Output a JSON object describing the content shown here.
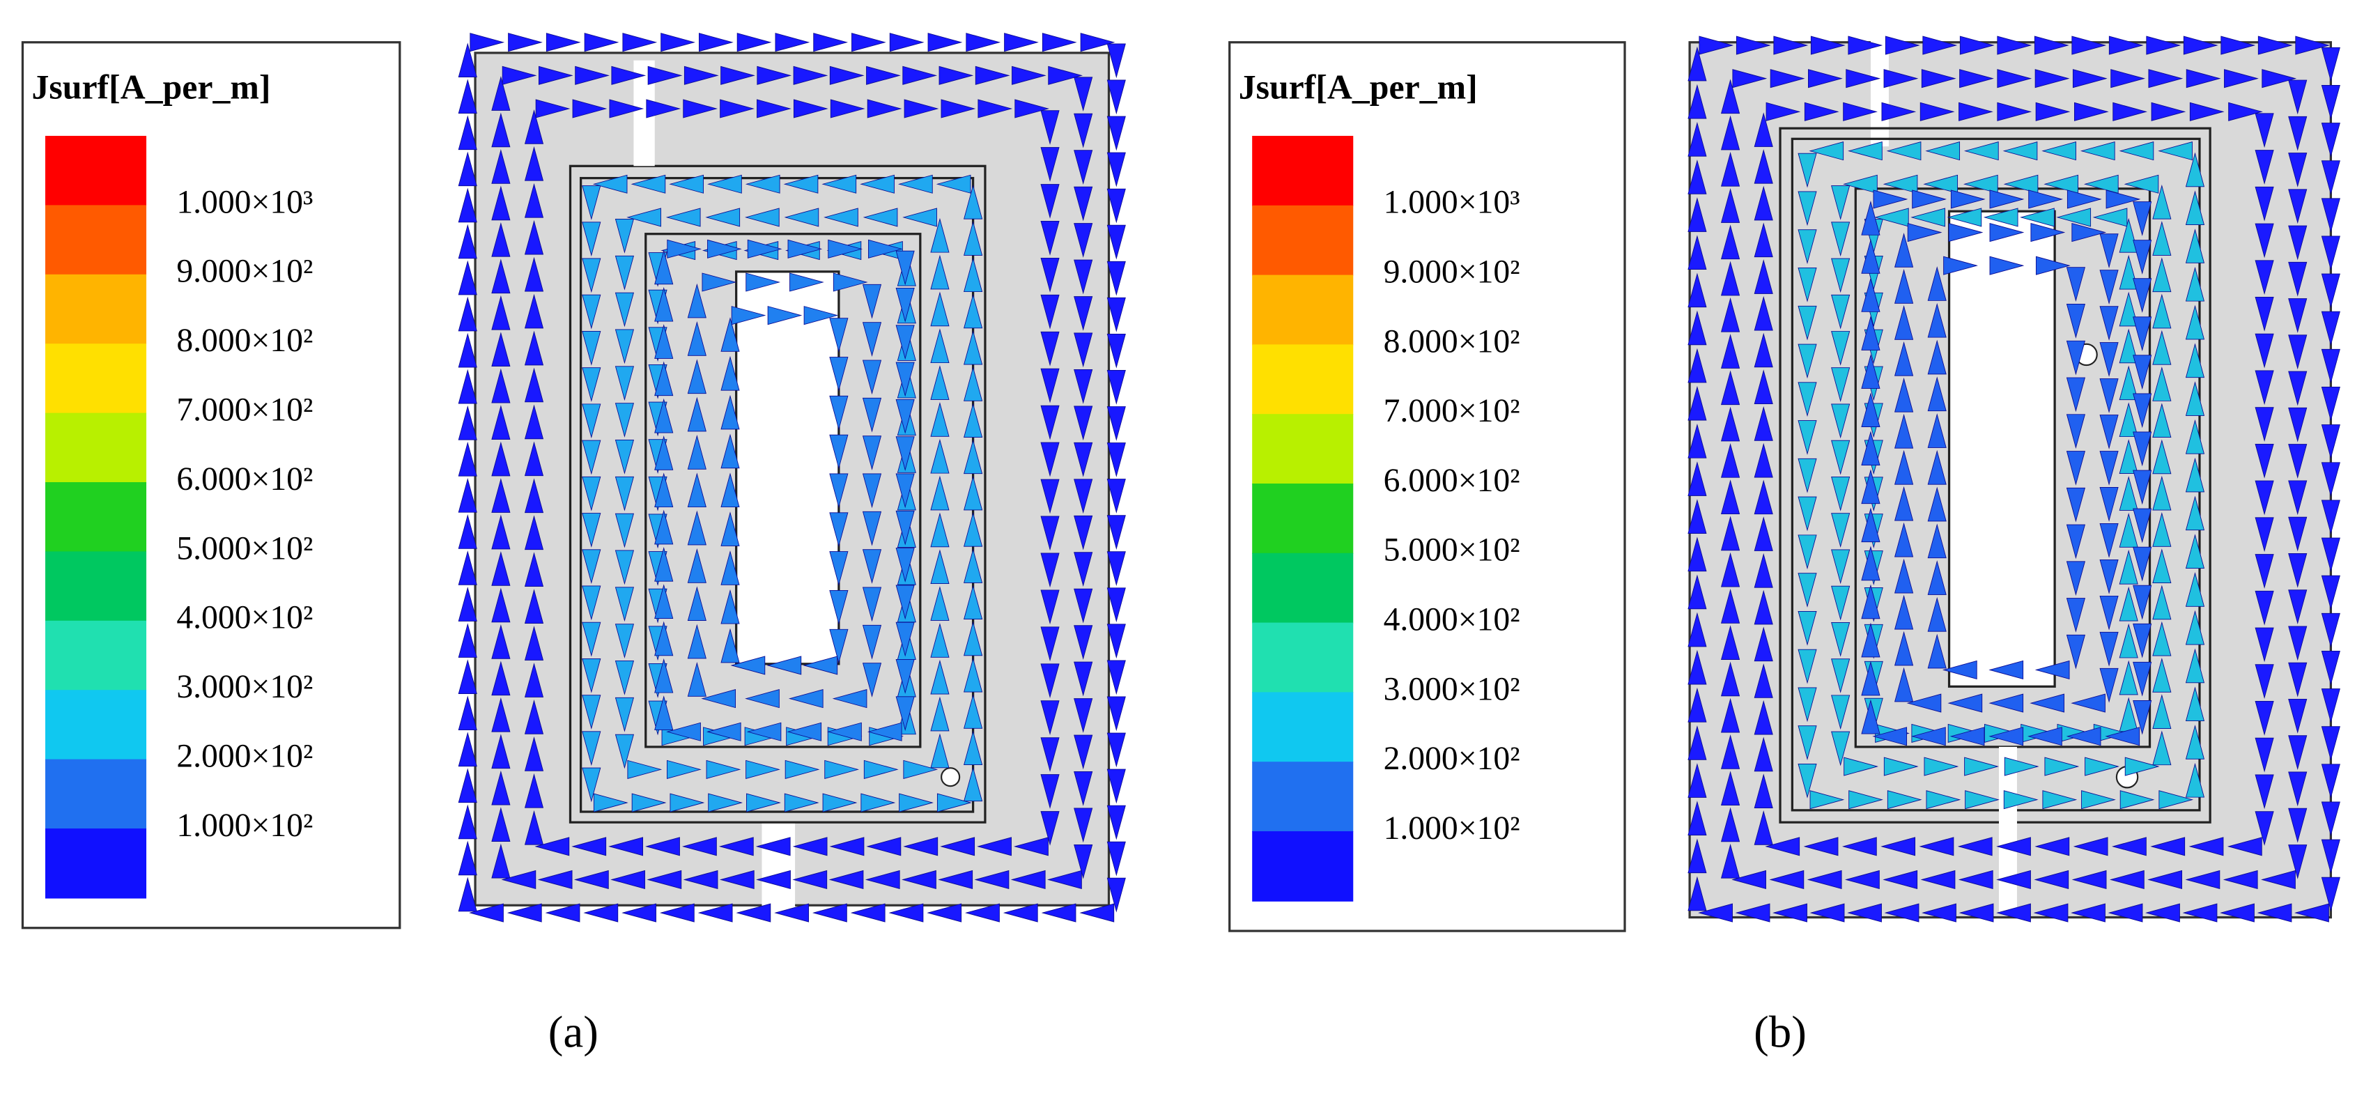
{
  "panels": [
    {
      "legend": {
        "title": "Jsurf[A_per_m]",
        "labels": [
          "1.000×10³",
          "9.000×10²",
          "8.000×10²",
          "7.000×10²",
          "6.000×10²",
          "5.000×10²",
          "4.000×10²",
          "3.000×10²",
          "2.000×10²",
          "1.000×10²"
        ],
        "colors": [
          "#ff0000",
          "#ff5a00",
          "#ffb400",
          "#ffe000",
          "#b8f000",
          "#20d020",
          "#00c860",
          "#20e0b0",
          "#10c8f0",
          "#2070f0",
          "#1010ff"
        ]
      },
      "caption": "(a)"
    },
    {
      "legend": {
        "title": "Jsurf[A_per_m]",
        "labels": [
          "1.000×10³",
          "9.000×10²",
          "8.000×10²",
          "7.000×10²",
          "6.000×10²",
          "5.000×10²",
          "4.000×10²",
          "3.000×10²",
          "2.000×10²",
          "1.000×10²"
        ],
        "colors": [
          "#ff0000",
          "#ff5a00",
          "#ffb400",
          "#ffe000",
          "#b8f000",
          "#20d020",
          "#00c860",
          "#20e0b0",
          "#10c8f0",
          "#2070f0",
          "#1010ff"
        ]
      },
      "caption": "(b)"
    }
  ]
}
